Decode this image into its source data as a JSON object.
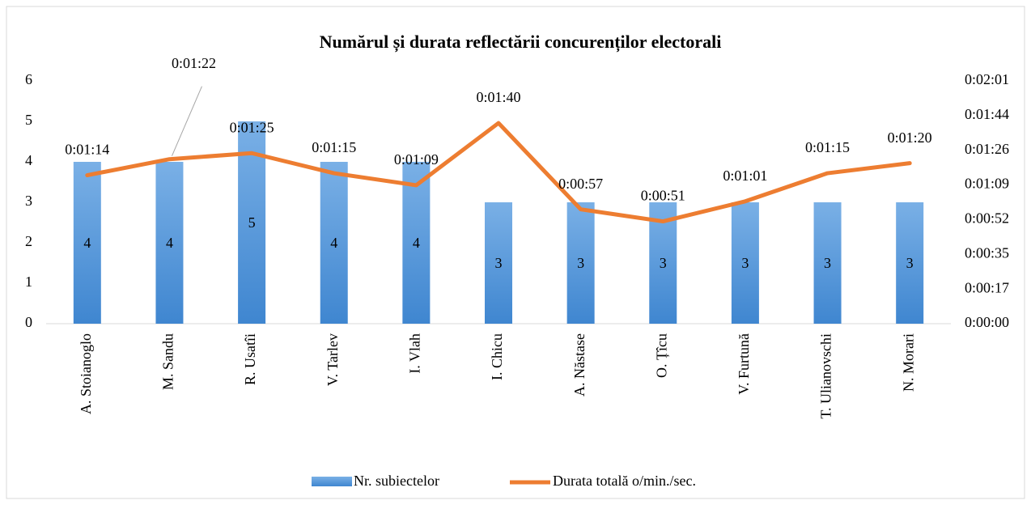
{
  "chart_data": {
    "type": "bar-line",
    "title": "Numărul și durata reflectării concurenților electorali",
    "categories": [
      "A. Stoianoglo",
      "M. Sandu",
      "R. Usatîi",
      "V. Tarlev",
      "I. Vlah",
      "I. Chicu",
      "A. Năstase",
      "O. Țîcu",
      "V. Furtună",
      "T. Ulianovschi",
      "N. Morari"
    ],
    "series": [
      {
        "name": "Nr. subiectelor",
        "color": "#4a8fd6",
        "type": "bar",
        "values": [
          4,
          4,
          5,
          4,
          4,
          3,
          3,
          3,
          3,
          3,
          3
        ]
      },
      {
        "name": "Durata totală o/min./sec.",
        "color": "#ed7d31",
        "type": "line",
        "axis": "y2",
        "values": [
          74,
          82,
          85,
          75,
          69,
          100,
          57,
          51,
          61,
          75,
          80
        ],
        "value_labels": [
          "0:01:14",
          "0:01:22",
          "0:01:25",
          "0:01:15",
          "0:01:09",
          "0:01:40",
          "0:00:57",
          "0:00:51",
          "0:01:01",
          "0:01:15",
          "0:01:20"
        ]
      }
    ],
    "ylim": [
      0,
      6
    ],
    "yticks": [
      0,
      1,
      2,
      3,
      4,
      5,
      6
    ],
    "y2lim": [
      0,
      121
    ],
    "y2ticks": [
      {
        "value": 0,
        "label": "0:00:00"
      },
      {
        "value": 17.29,
        "label": "0:00:17"
      },
      {
        "value": 34.57,
        "label": "0:00:35"
      },
      {
        "value": 51.86,
        "label": "0:00:52"
      },
      {
        "value": 69.14,
        "label": "0:01:09"
      },
      {
        "value": 86.43,
        "label": "0:01:26"
      },
      {
        "value": 103.71,
        "label": "0:01:44"
      },
      {
        "value": 121,
        "label": "0:02:01"
      }
    ],
    "legend": "bottom"
  }
}
